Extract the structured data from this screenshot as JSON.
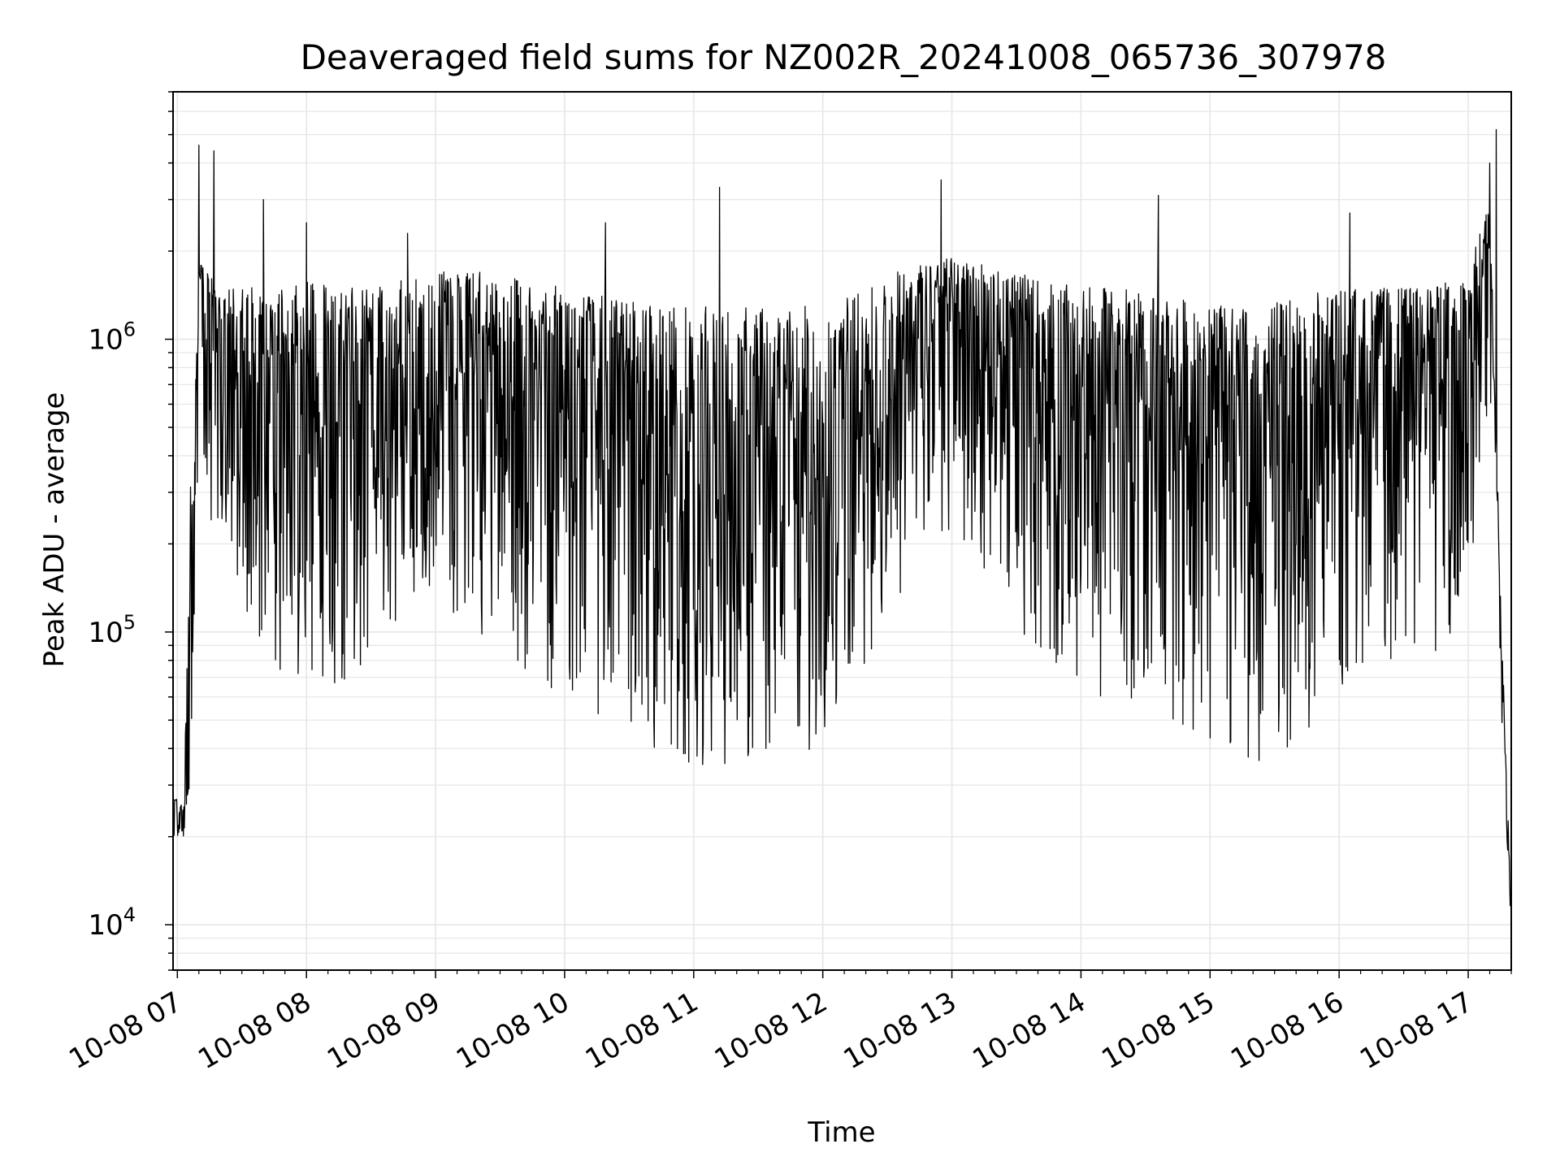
{
  "chart_data": {
    "type": "line",
    "title": "Deaveraged field sums for NZ002R_20241008_065736_307978",
    "xlabel": "Time",
    "ylabel": "Peak ADU - average",
    "yscale": "log",
    "ylim": [
      7000,
      7000000
    ],
    "xlim": [
      "10-08 06:58",
      "10-08 17:20"
    ],
    "grid": true,
    "line_color": "#000000",
    "x_tick_labels": [
      "10-08 07",
      "10-08 08",
      "10-08 09",
      "10-08 10",
      "10-08 11",
      "10-08 12",
      "10-08 13",
      "10-08 14",
      "10-08 15",
      "10-08 16",
      "10-08 17"
    ],
    "y_tick_labels": [
      {
        "value": 10000,
        "base": "10",
        "exp": "4"
      },
      {
        "value": 100000,
        "base": "10",
        "exp": "5"
      },
      {
        "value": 1000000,
        "base": "10",
        "exp": "6"
      }
    ],
    "series": [
      {
        "x": [
          "10-08 06:58",
          "10-08 07:03",
          "10-08 07:06",
          "10-08 07:10",
          "10-08 07:20",
          "10-08 07:40",
          "10-08 08:00",
          "10-08 08:20",
          "10-08 08:40",
          "10-08 09:00",
          "10-08 09:20",
          "10-08 09:40",
          "10-08 10:00",
          "10-08 10:20",
          "10-08 10:40",
          "10-08 11:00",
          "10-08 11:20",
          "10-08 11:40",
          "10-08 12:00",
          "10-08 12:20",
          "10-08 12:40",
          "10-08 13:00",
          "10-08 13:20",
          "10-08 13:40",
          "10-08 14:00",
          "10-08 14:20",
          "10-08 14:40",
          "10-08 15:00",
          "10-08 15:20",
          "10-08 15:40",
          "10-08 16:00",
          "10-08 16:20",
          "10-08 16:40",
          "10-08 17:00",
          "10-08 17:10",
          "10-08 17:16",
          "10-08 17:20"
        ],
        "y": [
          27000,
          21000,
          35000,
          1500000,
          900000,
          700000,
          600000,
          500000,
          700000,
          800000,
          800000,
          700000,
          600000,
          500000,
          400000,
          300000,
          300000,
          300000,
          350000,
          500000,
          800000,
          1200000,
          1000000,
          700000,
          600000,
          700000,
          600000,
          500000,
          400000,
          400000,
          600000,
          700000,
          700000,
          800000,
          2000000,
          60000,
          10000
        ],
        "upper_envelope": [
          28000,
          25000,
          300000,
          2000000,
          1500000,
          1500000,
          1600000,
          1500000,
          1600000,
          1700000,
          1700000,
          1600000,
          1500000,
          1400000,
          1350000,
          1300000,
          1300000,
          1300000,
          1300000,
          1500000,
          1800000,
          1900000,
          1800000,
          1600000,
          1500000,
          1500000,
          1400000,
          1300000,
          1300000,
          1400000,
          1500000,
          1500000,
          1500000,
          1700000,
          3000000,
          80000,
          12000
        ],
        "lower_envelope": [
          20000,
          20000,
          30000,
          300000,
          200000,
          80000,
          60000,
          70000,
          100000,
          120000,
          100000,
          70000,
          60000,
          50000,
          40000,
          35000,
          35000,
          35000,
          40000,
          80000,
          150000,
          200000,
          150000,
          80000,
          60000,
          60000,
          50000,
          40000,
          35000,
          40000,
          60000,
          80000,
          80000,
          100000,
          400000,
          40000,
          9000
        ],
        "spikes": [
          {
            "x": "10-08 07:10",
            "y": 4600000
          },
          {
            "x": "10-08 07:17",
            "y": 4400000
          },
          {
            "x": "10-08 07:40",
            "y": 3000000
          },
          {
            "x": "10-08 08:00",
            "y": 2500000
          },
          {
            "x": "10-08 08:47",
            "y": 2300000
          },
          {
            "x": "10-08 10:19",
            "y": 2500000
          },
          {
            "x": "10-08 11:12",
            "y": 3300000
          },
          {
            "x": "10-08 12:55",
            "y": 3500000
          },
          {
            "x": "10-08 14:36",
            "y": 3100000
          },
          {
            "x": "10-08 16:05",
            "y": 2700000
          },
          {
            "x": "10-08 17:10",
            "y": 4000000
          },
          {
            "x": "10-08 17:13",
            "y": 5200000
          }
        ]
      }
    ]
  }
}
